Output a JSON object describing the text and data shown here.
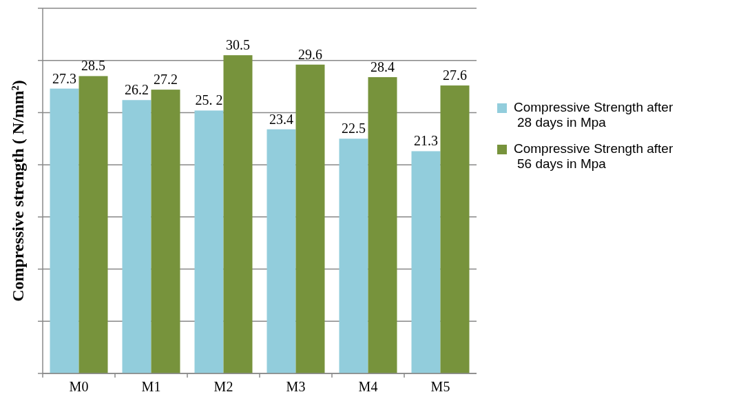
{
  "chart_data": {
    "type": "bar",
    "ylabel": "Compressive strength ( N/mm²)",
    "categories": [
      "M0",
      "M1",
      "M2",
      "M3",
      "M4",
      "M5"
    ],
    "series": [
      {
        "name": "Compressive Strength after 28 days in Mpa",
        "color": "#92cddc",
        "values": [
          27.3,
          26.2,
          25.2,
          23.4,
          22.5,
          21.3
        ],
        "value_labels": [
          "27.3",
          "26.2",
          "25. 2",
          "23.4",
          "22.5",
          "21.3"
        ]
      },
      {
        "name": "Compressive Strength after 56 days in Mpa",
        "color": "#77933c",
        "values": [
          28.5,
          27.2,
          30.5,
          29.6,
          28.4,
          27.6
        ],
        "value_labels": [
          "28.5",
          "27.2",
          "30.5",
          "29.6",
          "28.4",
          "27.6"
        ]
      }
    ],
    "ylim": [
      0,
      35
    ],
    "yticks": [
      {
        "value": 0,
        "label": null
      },
      {
        "value": 5,
        "label": null
      },
      {
        "value": 10,
        "label": null
      },
      {
        "value": 15,
        "label": null
      },
      {
        "value": 20,
        "label": null
      },
      {
        "value": 25,
        "label": null
      },
      {
        "value": 30,
        "label": null
      },
      {
        "value": 35,
        "label": null
      }
    ],
    "grid": "y",
    "legend": "right",
    "tick_labels": "x"
  }
}
